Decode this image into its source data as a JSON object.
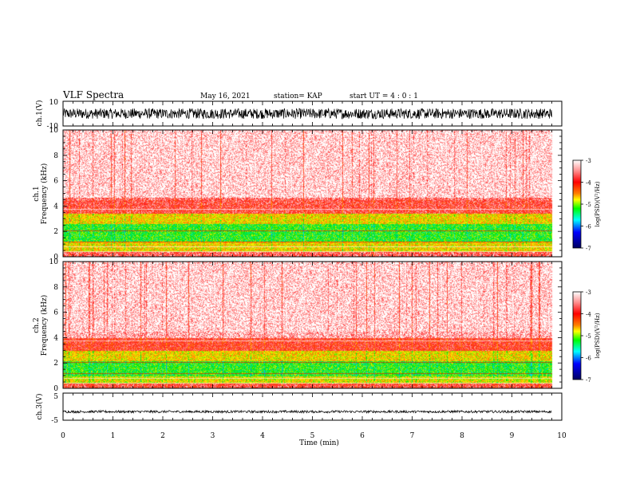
{
  "header": {
    "title": "VLF Spectra",
    "date": "May 16, 2021",
    "station": "station= KAP",
    "start": "start  UT  =   4 : 0  : 1"
  },
  "colors": {
    "colormap": [
      "#ffffff",
      "#ff0000",
      "#ffff00",
      "#00ff00",
      "#00ffff",
      "#0000ff",
      "#000080"
    ]
  },
  "chart_data": [
    {
      "type": "line",
      "panel": "ch1-waveform",
      "ylabel": "ch.1(V)",
      "ylim": [
        -10,
        10
      ],
      "yticks": [
        "10",
        "-10"
      ],
      "xlim": [
        0,
        10
      ],
      "description_values": {
        "typical_min": -4,
        "typical_max": 4,
        "mean": 0
      },
      "series": [
        {
          "values": "noise oscillation between about -4 and 4 V over 0 to 9.8 min"
        }
      ]
    },
    {
      "type": "heatmap",
      "panel": "ch1-spectrogram",
      "ylabel": "ch.1\nFrequency  (kHz)",
      "ylim": [
        0,
        10
      ],
      "yticks": [
        "0",
        "2",
        "4",
        "6",
        "8",
        "10"
      ],
      "xlim": [
        0,
        10
      ],
      "data_end_min": 9.8,
      "bands": [
        {
          "f_low": 0.0,
          "f_high": 0.4,
          "level": -3.5
        },
        {
          "f_low": 0.4,
          "f_high": 1.2,
          "level": -4.6
        },
        {
          "f_low": 1.2,
          "f_high": 2.6,
          "level": -5.2
        },
        {
          "f_low": 2.6,
          "f_high": 3.4,
          "level": -4.6
        },
        {
          "f_low": 3.4,
          "f_high": 4.7,
          "level": -3.6
        },
        {
          "f_low": 4.7,
          "f_high": 10.0,
          "level": -3.2
        }
      ],
      "colorbar": {
        "label": "log(PSD)(V²/Hz)",
        "range": [
          -7,
          -3
        ],
        "ticks": [
          "-3",
          "-4",
          "-5",
          "-6",
          "-7"
        ]
      }
    },
    {
      "type": "heatmap",
      "panel": "ch2-spectrogram",
      "ylabel": "ch.2\nFrequency  (kHz)",
      "ylim": [
        0,
        10
      ],
      "yticks": [
        "0",
        "2",
        "4",
        "6",
        "8",
        "10"
      ],
      "xlim": [
        0,
        10
      ],
      "data_end_min": 9.8,
      "bands": [
        {
          "f_low": 0.0,
          "f_high": 0.4,
          "level": -3.6
        },
        {
          "f_low": 0.4,
          "f_high": 1.0,
          "level": -4.7
        },
        {
          "f_low": 1.0,
          "f_high": 2.2,
          "level": -5.2
        },
        {
          "f_low": 2.2,
          "f_high": 3.0,
          "level": -4.6
        },
        {
          "f_low": 3.0,
          "f_high": 4.0,
          "level": -3.7
        },
        {
          "f_low": 4.0,
          "f_high": 10.0,
          "level": -3.2
        }
      ],
      "colorbar": {
        "label": "log(PSD)(V²/Hz)",
        "range": [
          -7,
          -3
        ],
        "ticks": [
          "-3",
          "-4",
          "-5",
          "-6",
          "-7"
        ]
      }
    },
    {
      "type": "line",
      "panel": "ch3-waveform",
      "ylabel": "ch.3(V)",
      "ylim": [
        -5,
        5
      ],
      "yticks": [
        "5",
        "-5"
      ],
      "xlim": [
        0,
        10
      ],
      "xlabel": "Time  (min)",
      "xticks": [
        "0",
        "1",
        "2",
        "3",
        "4",
        "5",
        "6",
        "7",
        "8",
        "9",
        "10"
      ],
      "series": [
        {
          "values": "dense oscillation between about -2.3 and -1.5 V over 0 to 9.8 min"
        }
      ]
    }
  ]
}
